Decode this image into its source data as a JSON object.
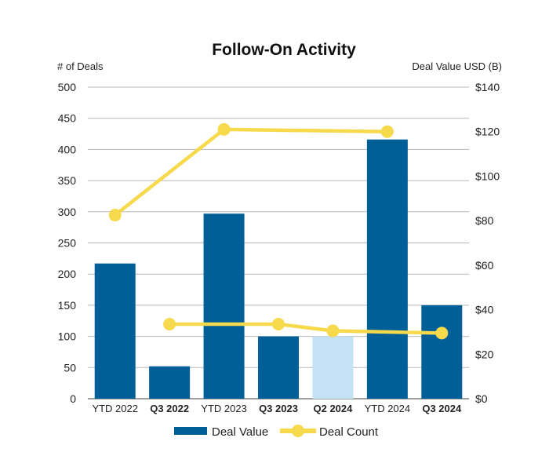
{
  "chart_data": {
    "type": "bar",
    "title": "Follow-On Activity",
    "ylabel_left": "# of Deals",
    "ylabel_right": "Deal Value USD (B)",
    "categories": [
      "YTD 2022",
      "Q3 2022",
      "YTD 2023",
      "Q3 2023",
      "Q2 2024",
      "YTD 2024",
      "Q3 2024"
    ],
    "bold_categories": [
      "Q3 2022",
      "Q3 2023",
      "Q2 2024",
      "Q3 2024"
    ],
    "left_ylim": [
      0,
      500
    ],
    "left_ticks": [
      "0",
      "50",
      "100",
      "150",
      "200",
      "250",
      "300",
      "350",
      "400",
      "450",
      "500"
    ],
    "right_ylim": [
      0,
      140
    ],
    "right_ticks": [
      "$0",
      "$20",
      "$40",
      "$60",
      "$80",
      "$100",
      "$120",
      "$140"
    ],
    "grid": true,
    "series": [
      {
        "name": "Deal Value",
        "kind": "bar",
        "axis": "left",
        "values": [
          217,
          52,
          297,
          100,
          100,
          416,
          150
        ],
        "color": "#005f96",
        "highlight_color": "#c3e2f4",
        "highlight_index": 4
      },
      {
        "name": "Deal Count",
        "kind": "line",
        "axis": "right",
        "color": "#f7d94c",
        "segments": [
          {
            "points": [
              {
                "x": "YTD 2022",
                "y": 82.5
              },
              {
                "x": "YTD 2023",
                "y": 121
              },
              {
                "x": "YTD 2024",
                "y": 120
              }
            ]
          },
          {
            "points": [
              {
                "x": "Q3 2022",
                "y": 33.5
              },
              {
                "x": "Q3 2023",
                "y": 33.5
              },
              {
                "x": "Q2 2024",
                "y": 30.5
              },
              {
                "x": "Q3 2024",
                "y": 29.5
              }
            ]
          }
        ]
      }
    ],
    "legend": {
      "position": "bottom",
      "items": [
        "Deal Value",
        "Deal Count"
      ]
    }
  }
}
